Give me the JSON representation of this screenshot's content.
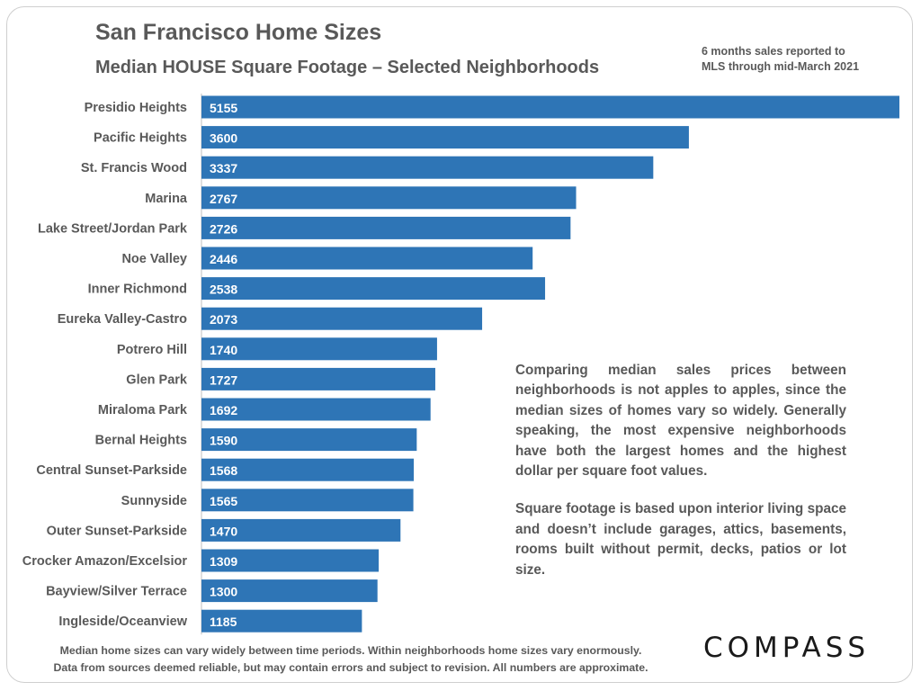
{
  "header": {
    "title": "San Francisco Home Sizes",
    "subtitle": "Median HOUSE Square Footage – Selected Neighborhoods",
    "note_line1": "6 months sales reported to",
    "note_line2": "MLS through mid-March 2021"
  },
  "commentary": {
    "paragraph1": "Comparing median sales prices between neighborhoods is not apples to apples, since the median sizes of homes vary so widely. Generally speaking, the most expensive neighborhoods have both the largest homes and the highest dollar per square foot values.",
    "paragraph2": "Square footage is based upon interior living space and doesn’t include garages, attics, basements, rooms built without permit, decks, patios or lot size."
  },
  "footer": {
    "line1": "Median home sizes can vary widely between time periods. Within neighborhoods home sizes vary enormously.",
    "line2": "Data from sources deemed reliable, but may contain errors and subject to revision. All numbers are approximate."
  },
  "logo": {
    "text": "COMPASS"
  },
  "colors": {
    "bar": "#2e75b6",
    "axis": "#bfbfbf",
    "text": "#595959",
    "label_on_bar": "#ffffff"
  },
  "chart_data": {
    "type": "bar",
    "orientation": "horizontal",
    "title": "San Francisco Home Sizes",
    "subtitle": "Median HOUSE Square Footage – Selected Neighborhoods",
    "categories": [
      "Presidio Heights",
      "Pacific Heights",
      "St. Francis Wood",
      "Marina",
      "Lake Street/Jordan Park",
      "Noe Valley",
      "Inner Richmond",
      "Eureka Valley-Castro",
      "Potrero Hill",
      "Glen Park",
      "Miraloma Park",
      "Bernal Heights",
      "Central Sunset-Parkside",
      "Sunnyside",
      "Outer Sunset-Parkside",
      "Crocker Amazon/Excelsior",
      "Bayview/Silver Terrace",
      "Ingleside/Oceanview"
    ],
    "values": [
      5155,
      3600,
      3337,
      2767,
      2726,
      2446,
      2538,
      2073,
      1740,
      1727,
      1692,
      1590,
      1568,
      1565,
      1470,
      1309,
      1300,
      1185
    ],
    "xlim": [
      0,
      5155
    ],
    "grid": false,
    "legend": "none",
    "data_labels": "inside-base"
  }
}
